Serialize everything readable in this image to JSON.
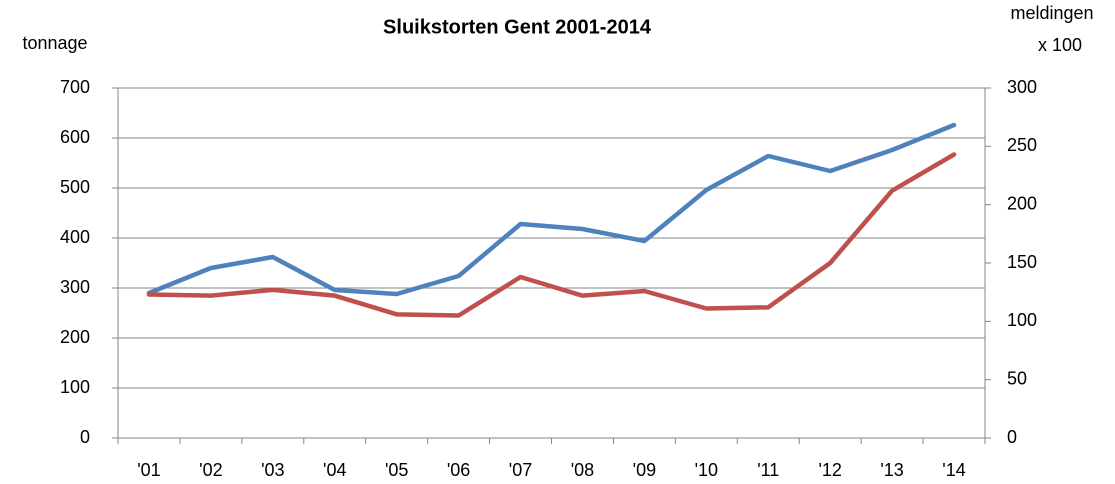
{
  "chart_data": {
    "type": "line",
    "title": "Sluikstorten Gent 2001-2014",
    "ylabel": "tonnage",
    "y2label": [
      "meldingen",
      "x 100"
    ],
    "categories": [
      "'01",
      "'02",
      "'03",
      "'04",
      "'05",
      "'06",
      "'07",
      "'08",
      "'09",
      "'10",
      "'11",
      "'12",
      "'13",
      "'14"
    ],
    "series": [
      {
        "color": "#4f81bd",
        "axis": "y",
        "values": [
          290,
          340,
          362,
          296,
          288,
          324,
          428,
          418,
          394,
          496,
          564,
          534,
          576,
          626
        ]
      },
      {
        "color": "#c0504d",
        "axis": "y2",
        "values": [
          123,
          122,
          127,
          122,
          106,
          105,
          138,
          122,
          126,
          111,
          112,
          150,
          212,
          243
        ]
      }
    ],
    "ylim": [
      0,
      700
    ],
    "yticks": [
      0,
      100,
      200,
      300,
      400,
      500,
      600,
      700
    ],
    "y2lim": [
      0,
      300
    ],
    "y2ticks": [
      0,
      50,
      100,
      150,
      200,
      250,
      300
    ],
    "grid": true
  }
}
